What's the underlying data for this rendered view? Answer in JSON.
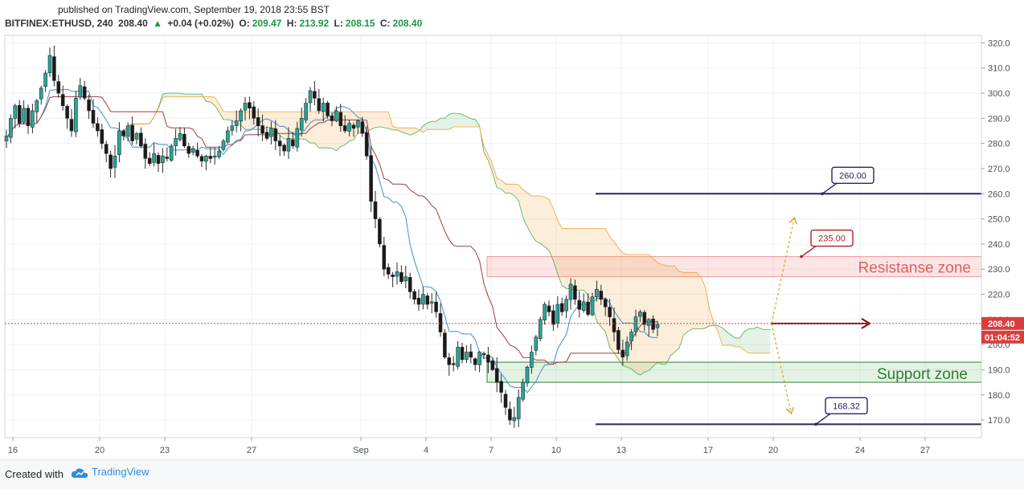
{
  "header": {
    "published": "published on TradingView.com, September 19, 2018 23:55 BST",
    "symbol": "BITFINEX:ETHUSD, 240",
    "last": "208.40",
    "change": "+0.04 (+0.02%)",
    "open_label": "O:",
    "open": "209.47",
    "high_label": "H:",
    "high": "213.92",
    "low_label": "L:",
    "low": "208.15",
    "close_label": "C:",
    "close": "208.40",
    "up_arrow": "triangle-up-icon"
  },
  "footer": {
    "created_with": "Created with",
    "brand": "TradingView",
    "brand_icon": "cloud-icon"
  },
  "colors": {
    "up": "#26a69a",
    "down": "#1a1a1a",
    "line_blue": "#3d8fd6",
    "line_red": "#a33a3a",
    "cloud_green": "#4caf50",
    "cloud_orange": "#f0a030",
    "level": "#2c2462",
    "resistance": "#e06060",
    "support": "#2e7d32",
    "price_tag": "#d93e3e"
  },
  "chart_data": {
    "type": "candlestick",
    "ylim": [
      163,
      323
    ],
    "y_ticks": [
      170,
      180,
      190,
      200,
      210,
      220,
      230,
      240,
      250,
      260,
      270,
      280,
      290,
      300,
      310,
      320
    ],
    "x_ticks": [
      {
        "label": "16",
        "x": 16
      },
      {
        "label": "20",
        "x": 124
      },
      {
        "label": "23",
        "x": 205
      },
      {
        "label": "27",
        "x": 313
      },
      {
        "label": "Sep",
        "x": 449
      },
      {
        "label": "4",
        "x": 530
      },
      {
        "label": "7",
        "x": 611
      },
      {
        "label": "10",
        "x": 692
      },
      {
        "label": "13",
        "x": 773
      },
      {
        "label": "17",
        "x": 881
      },
      {
        "label": "20",
        "x": 962
      },
      {
        "label": "24",
        "x": 1070
      },
      {
        "label": "27",
        "x": 1151
      }
    ],
    "closes": [
      283,
      290,
      295,
      288,
      294,
      287,
      293,
      297,
      302,
      308,
      315,
      305,
      300,
      295,
      290,
      285,
      298,
      303,
      298,
      293,
      288,
      285,
      280,
      276,
      270,
      275,
      285,
      283,
      287,
      281,
      284,
      279,
      274,
      272,
      276,
      272,
      275,
      274,
      279,
      282,
      284,
      279,
      276,
      278,
      275,
      273,
      275,
      274,
      275,
      277,
      281,
      285,
      287,
      289,
      293,
      296,
      294,
      290,
      287,
      284,
      282,
      286,
      281,
      279,
      277,
      282,
      279,
      286,
      290,
      296,
      301,
      298,
      293,
      296,
      291,
      289,
      293,
      287,
      285,
      288,
      286,
      289,
      284,
      275,
      257,
      250,
      240,
      230,
      228,
      227,
      229,
      225,
      227,
      221,
      218,
      216,
      220,
      216,
      217,
      213,
      205,
      195,
      192,
      192,
      199,
      194,
      197,
      195,
      192,
      197,
      196,
      193,
      190,
      185,
      181,
      175,
      170,
      171,
      179,
      185,
      191,
      197,
      203,
      210,
      216,
      213,
      208,
      216,
      213,
      218,
      224,
      218,
      214,
      217,
      212,
      219,
      222,
      218,
      215,
      211,
      205,
      198,
      195,
      201,
      205,
      211,
      213,
      208,
      210,
      206,
      208
    ],
    "current_price": "208.40",
    "countdown": "01:04:52",
    "levels": [
      {
        "label": "260.00",
        "value": 260
      },
      {
        "label": "168.32",
        "value": 168.32
      }
    ],
    "resistance_target": {
      "label": "235.00",
      "value": 235
    },
    "resistance_zone": {
      "label": "Resistanse zone",
      "low": 227,
      "high": 235
    },
    "support_zone": {
      "label": "Support zone",
      "low": 185,
      "high": 193
    },
    "projection": {
      "up_target": 250,
      "down_target": 173,
      "arrow_value": 208.4
    }
  }
}
